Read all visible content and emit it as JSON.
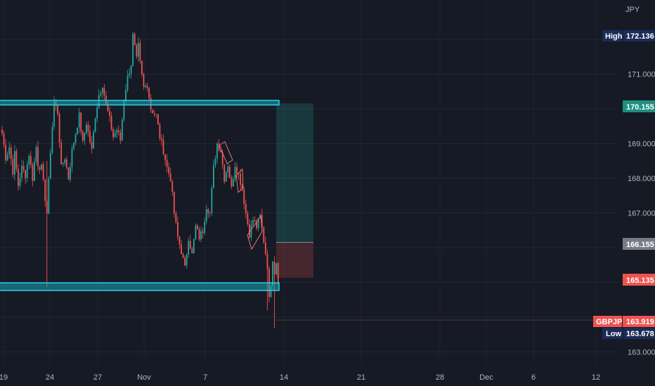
{
  "currency_label": "JPY",
  "colors": {
    "background": "#161a25",
    "up": "#26a69a",
    "down": "#ef5350",
    "zone_stroke": "#2bd1e6",
    "zone_fill": "#1aa7b8",
    "axis_text": "#b2b5be",
    "navy": "#1c2b57",
    "current_price_line": "#ef5350"
  },
  "chart_data": {
    "type": "candlestick",
    "symbol": "GBPJPY",
    "y_axis": {
      "ticks": [
        163.0,
        167.0,
        168.0,
        169.0,
        171.0
      ],
      "tick_labels": [
        "163.000",
        "167.000",
        "168.000",
        "169.000",
        "171.000"
      ],
      "range": [
        162.5,
        172.8
      ]
    },
    "x_axis": {
      "tick_labels": [
        "19",
        "24",
        "27",
        "Nov",
        "7",
        "14",
        "21",
        "28",
        "Dec",
        "6",
        "12"
      ]
    },
    "price_tags": {
      "high": {
        "label": "High",
        "value": "172.136"
      },
      "upper_zone": {
        "value": "170.155"
      },
      "entry": {
        "value": "166.155"
      },
      "stop": {
        "value": "165.135"
      },
      "current": {
        "label": "GBPJPY",
        "value": "163.919"
      },
      "low": {
        "label": "Low",
        "value": "163.678"
      }
    },
    "zones": [
      {
        "name": "resistance",
        "low": 170.11,
        "high": 170.24
      },
      {
        "name": "support",
        "low": 164.77,
        "high": 164.99
      }
    ],
    "position": {
      "type": "long",
      "entry": 166.155,
      "target": 170.155,
      "stop": 165.135
    },
    "series_path": [
      [
        0,
        169.3
      ],
      [
        2,
        168.6
      ],
      [
        4,
        168.9
      ],
      [
        6,
        168.2
      ],
      [
        7,
        168.7
      ],
      [
        9,
        167.8
      ],
      [
        11,
        168.3
      ],
      [
        13,
        168.1
      ],
      [
        15,
        168.7
      ],
      [
        17,
        168.0
      ],
      [
        19,
        168.9
      ],
      [
        20,
        168.4
      ],
      [
        22,
        168.3
      ],
      [
        25,
        167.0
      ],
      [
        27,
        168.8
      ],
      [
        29,
        170.2
      ],
      [
        31,
        169.9
      ],
      [
        33,
        168.3
      ],
      [
        35,
        168.6
      ],
      [
        37,
        168.0
      ],
      [
        39,
        168.8
      ],
      [
        41,
        169.3
      ],
      [
        43,
        169.8
      ],
      [
        45,
        169.0
      ],
      [
        47,
        169.6
      ],
      [
        50,
        168.8
      ],
      [
        52,
        169.8
      ],
      [
        54,
        170.4
      ],
      [
        56,
        170.7
      ],
      [
        58,
        170.1
      ],
      [
        60,
        169.7
      ],
      [
        62,
        169.2
      ],
      [
        64,
        169.4
      ],
      [
        66,
        169.1
      ],
      [
        68,
        170.3
      ],
      [
        70,
        170.9
      ],
      [
        72,
        171.3
      ],
      [
        73,
        172.1
      ],
      [
        75,
        171.4
      ],
      [
        76,
        171.8
      ],
      [
        77,
        171.3
      ],
      [
        79,
        170.6
      ],
      [
        81,
        170.7
      ],
      [
        83,
        170.0
      ],
      [
        86,
        169.8
      ],
      [
        88,
        169.2
      ],
      [
        90,
        168.8
      ],
      [
        92,
        168.3
      ],
      [
        94,
        168.0
      ],
      [
        96,
        167.0
      ],
      [
        98,
        166.3
      ],
      [
        100,
        165.9
      ],
      [
        102,
        165.4
      ],
      [
        104,
        166.3
      ],
      [
        106,
        165.8
      ],
      [
        108,
        166.6
      ],
      [
        110,
        166.3
      ],
      [
        112,
        166.5
      ],
      [
        114,
        167.2
      ],
      [
        116,
        167.0
      ],
      [
        118,
        168.3
      ],
      [
        120,
        169.0
      ],
      [
        122,
        168.8
      ],
      [
        124,
        168.0
      ],
      [
        126,
        168.4
      ],
      [
        128,
        167.7
      ],
      [
        130,
        168.4
      ],
      [
        132,
        168.1
      ],
      [
        134,
        167.7
      ],
      [
        136,
        167.0
      ],
      [
        138,
        166.4
      ],
      [
        140,
        166.8
      ],
      [
        142,
        166.6
      ],
      [
        144,
        166.9
      ],
      [
        146,
        166.2
      ],
      [
        148,
        165.5
      ],
      [
        149,
        164.5
      ],
      [
        150,
        165.0
      ],
      [
        151,
        165.7
      ],
      [
        152,
        165.3
      ],
      [
        153,
        165.6
      ],
      [
        154,
        165.1
      ]
    ]
  }
}
